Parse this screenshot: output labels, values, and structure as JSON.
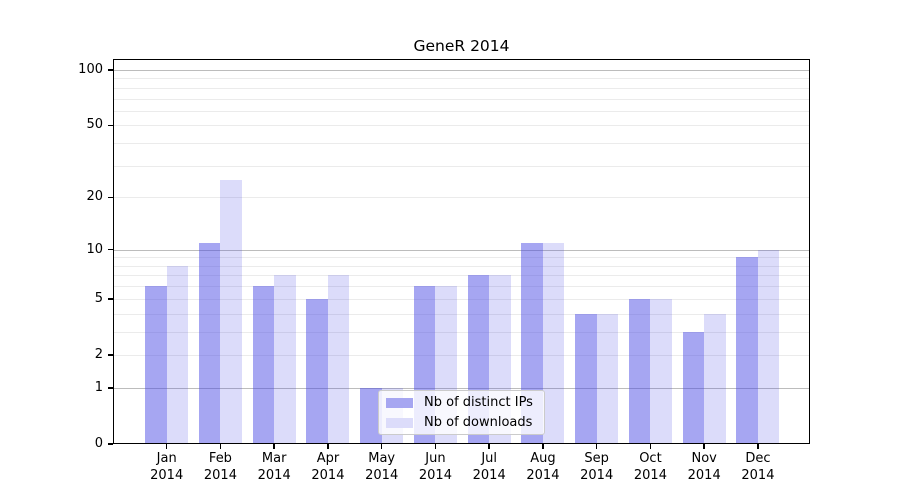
{
  "chart_data": {
    "type": "bar",
    "title": "GeneR 2014",
    "categories": [
      "Jan",
      "Feb",
      "Mar",
      "Apr",
      "May",
      "Jun",
      "Jul",
      "Aug",
      "Sep",
      "Oct",
      "Nov",
      "Dec"
    ],
    "x_tick_label_year": "2014",
    "series": [
      {
        "name": "Nb of distinct IPs",
        "fill": "rgba(70,70,228,0.48)",
        "legend_fill": "#a6a6f1",
        "values": [
          6,
          11,
          6,
          5,
          1,
          6,
          7,
          11,
          4,
          5,
          3,
          9
        ]
      },
      {
        "name": "Nb of downloads",
        "fill": "rgba(70,70,228,0.19)",
        "legend_fill": "#dcdcfa",
        "values": [
          8,
          25,
          7,
          7,
          1,
          6,
          7,
          11,
          4,
          5,
          4,
          10
        ]
      }
    ],
    "y_axis": {
      "scale": "log1p",
      "tick_values": [
        0,
        1,
        2,
        5,
        10,
        20,
        50,
        100
      ],
      "tick_labels": [
        "0",
        "1",
        "2",
        "5",
        "10",
        "20",
        "50",
        "100"
      ],
      "major_gridlines": [
        1,
        10,
        100
      ],
      "minor_gridlines": [
        2,
        3,
        4,
        5,
        6,
        7,
        8,
        9,
        20,
        30,
        40,
        50,
        60,
        70,
        80,
        90
      ],
      "major_gridline_color": "#bcbcbc",
      "minor_gridline_color": "#ebebeb",
      "max": 100
    },
    "legend": {
      "position": "bottom-center",
      "entries": [
        "Nb of distinct IPs",
        "Nb of downloads"
      ]
    },
    "grid": "on",
    "background": "#ffffff"
  }
}
